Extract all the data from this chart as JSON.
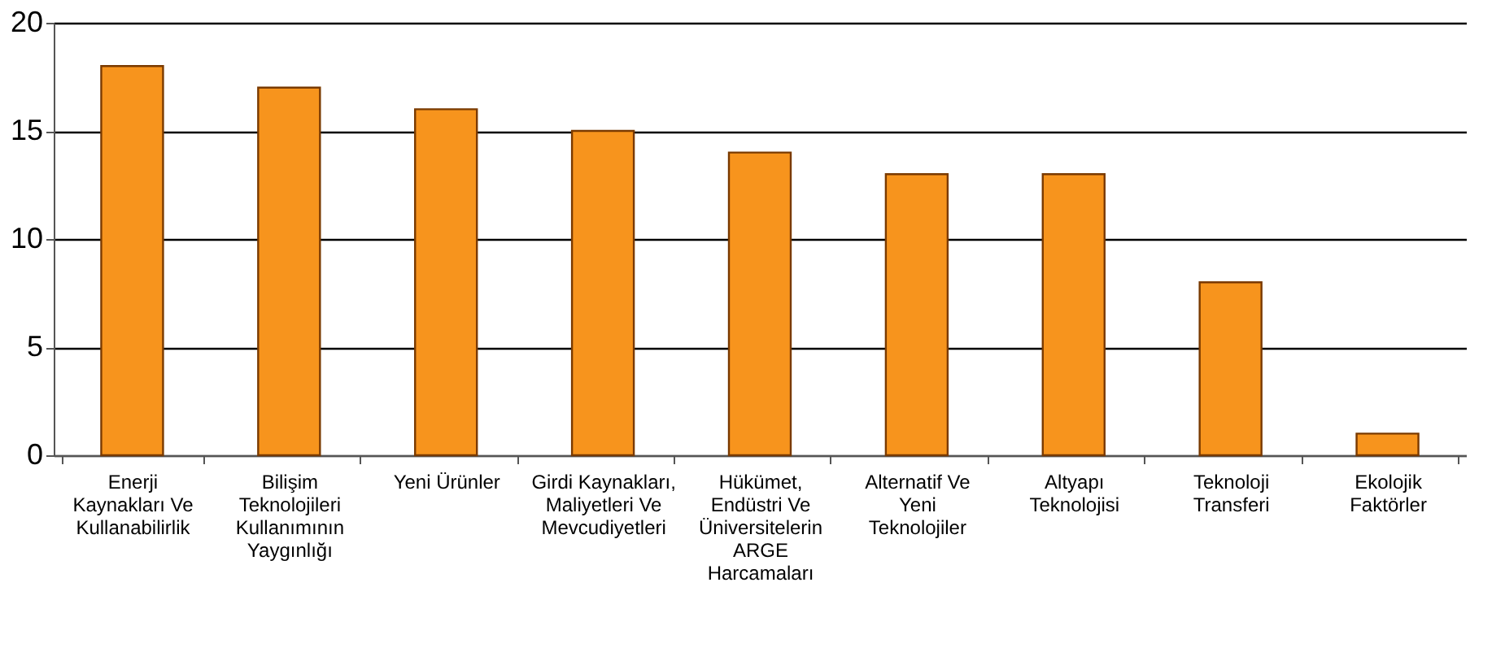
{
  "chart_data": {
    "type": "bar",
    "categories": [
      "Enerji\nKaynakları Ve\nKullanabilirlik",
      "Bilişim\nTeknolojileri\nKullanımının\nYaygınlığı",
      "Yeni Ürünler",
      "Girdi Kaynakları,\nMaliyetleri Ve\nMevcudiyetleri",
      "Hükümet,\nEndüstri Ve\nÜniversitelerin\nARGE\nHarcamaları",
      "Alternatif Ve\nYeni\nTeknolojiler",
      "Altyapı\nTeknolojisi",
      "Teknoloji\nTransferi",
      "Ekolojik\nFaktörler"
    ],
    "values": [
      18,
      17,
      16,
      15,
      14,
      13,
      13,
      8,
      1
    ],
    "color": "#f7941d",
    "ylim": [
      0,
      20
    ],
    "yticks": [
      0,
      5,
      10,
      15,
      20
    ],
    "grid": "y"
  }
}
